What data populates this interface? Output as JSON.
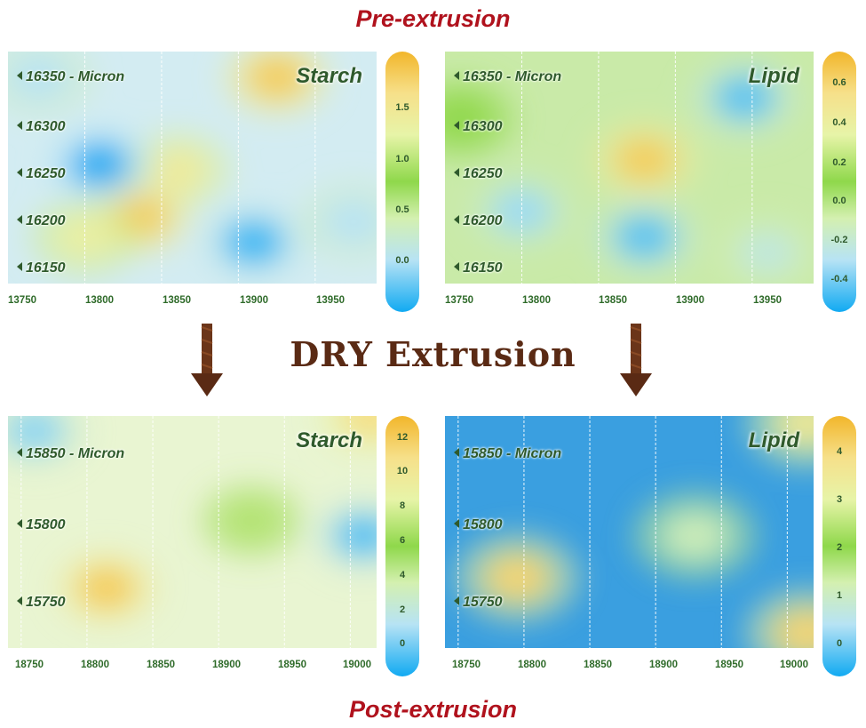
{
  "titles": {
    "pre": "Pre-extrusion",
    "post": "Post-extrusion",
    "process": "DRY Extrusion"
  },
  "chart_data": [
    {
      "type": "heatmap",
      "stage": "Pre-extrusion",
      "title": "Starch",
      "y_ticks": [
        "16350 - Micron",
        "16300",
        "16250",
        "16200",
        "16150"
      ],
      "y_values": [
        16350,
        16300,
        16250,
        16200,
        16150
      ],
      "x_ticks": [
        "13750",
        "13800",
        "13850",
        "13900",
        "13950"
      ],
      "x_values": [
        13750,
        13800,
        13850,
        13900,
        13950
      ],
      "xlim": [
        13750,
        13990
      ],
      "ylim": [
        16140,
        16365
      ],
      "colorbar_ticks": [
        "1.5",
        "1.0",
        "0.5",
        "0.0"
      ],
      "colorbar_range": [
        -0.5,
        2.0
      ],
      "grid": "vertical dashed",
      "hotspots": [
        {
          "x": 13925,
          "y": 16340,
          "value": 1.8
        },
        {
          "x": 13860,
          "y": 16250,
          "value": 1.4
        },
        {
          "x": 13835,
          "y": 16205,
          "value": 1.8
        },
        {
          "x": 13800,
          "y": 16185,
          "value": 1.3
        },
        {
          "x": 13910,
          "y": 16180,
          "value": -0.4
        },
        {
          "x": 13810,
          "y": 16255,
          "value": -0.5
        },
        {
          "x": 13770,
          "y": 16340,
          "value": 0.0
        },
        {
          "x": 13975,
          "y": 16200,
          "value": 0.0
        }
      ]
    },
    {
      "type": "heatmap",
      "stage": "Pre-extrusion",
      "title": "Lipid",
      "y_ticks": [
        "16350 - Micron",
        "16300",
        "16250",
        "16200",
        "16150"
      ],
      "y_values": [
        16350,
        16300,
        16250,
        16200,
        16150
      ],
      "x_ticks": [
        "13750",
        "13800",
        "13850",
        "13900",
        "13950"
      ],
      "x_values": [
        13750,
        13800,
        13850,
        13900,
        13950
      ],
      "xlim": [
        13750,
        13990
      ],
      "ylim": [
        16140,
        16365
      ],
      "colorbar_ticks": [
        "0.6",
        "0.4",
        "0.2",
        "0.0",
        "-0.2",
        "-0.4"
      ],
      "colorbar_range": [
        -0.5,
        0.7
      ],
      "grid": "vertical dashed",
      "hotspots": [
        {
          "x": 13880,
          "y": 16260,
          "value": 0.6
        },
        {
          "x": 13945,
          "y": 16320,
          "value": -0.4
        },
        {
          "x": 13800,
          "y": 16210,
          "value": -0.3
        },
        {
          "x": 13880,
          "y": 16185,
          "value": -0.4
        },
        {
          "x": 13960,
          "y": 16170,
          "value": -0.2
        },
        {
          "x": 13760,
          "y": 16300,
          "value": 0.1
        }
      ]
    },
    {
      "type": "heatmap",
      "stage": "Post-extrusion",
      "title": "Starch",
      "y_ticks": [
        "15850 - Micron",
        "15800",
        "15750"
      ],
      "y_values": [
        15850,
        15800,
        15750
      ],
      "x_ticks": [
        "18750",
        "18800",
        "18850",
        "18900",
        "18950",
        "19000"
      ],
      "x_values": [
        18750,
        18800,
        18850,
        18900,
        18950,
        19000
      ],
      "xlim": [
        18740,
        19020
      ],
      "ylim": [
        15715,
        15870
      ],
      "colorbar_ticks": [
        "12",
        "10",
        "8",
        "6",
        "4",
        "2",
        "0"
      ],
      "colorbar_range": [
        -1,
        13
      ],
      "grid": "vertical dashed",
      "hotspots": [
        {
          "x": 18815,
          "y": 15755,
          "value": 12
        },
        {
          "x": 18925,
          "y": 15800,
          "value": 7
        },
        {
          "x": 19015,
          "y": 15870,
          "value": 11
        },
        {
          "x": 19010,
          "y": 15790,
          "value": 0
        },
        {
          "x": 18760,
          "y": 15860,
          "value": 1
        }
      ]
    },
    {
      "type": "heatmap",
      "stage": "Post-extrusion",
      "title": "Lipid",
      "y_ticks": [
        "15850 - Micron",
        "15800",
        "15750"
      ],
      "y_values": [
        15850,
        15800,
        15750
      ],
      "x_ticks": [
        "18750",
        "18800",
        "18850",
        "18900",
        "18950",
        "19000"
      ],
      "x_values": [
        18750,
        18800,
        18850,
        18900,
        18950,
        19000
      ],
      "xlim": [
        18740,
        19020
      ],
      "ylim": [
        15715,
        15870
      ],
      "colorbar_ticks": [
        "4",
        "3",
        "2",
        "1",
        "0"
      ],
      "colorbar_range": [
        -0.4,
        4.6
      ],
      "grid": "vertical dashed",
      "hotspots": [
        {
          "x": 18795,
          "y": 15762,
          "value": 4
        },
        {
          "x": 18930,
          "y": 15790,
          "value": 1.3
        },
        {
          "x": 19015,
          "y": 15725,
          "value": 4
        },
        {
          "x": 19015,
          "y": 15865,
          "value": 3.5
        }
      ]
    }
  ],
  "colors": {
    "title_red": "#b0121d",
    "label_green": "#2f5a2c",
    "process_brown": "#5a2a14",
    "scale_high": "#f2b62b",
    "scale_mid": "#8fd84b",
    "scale_low": "#11aaf2"
  }
}
